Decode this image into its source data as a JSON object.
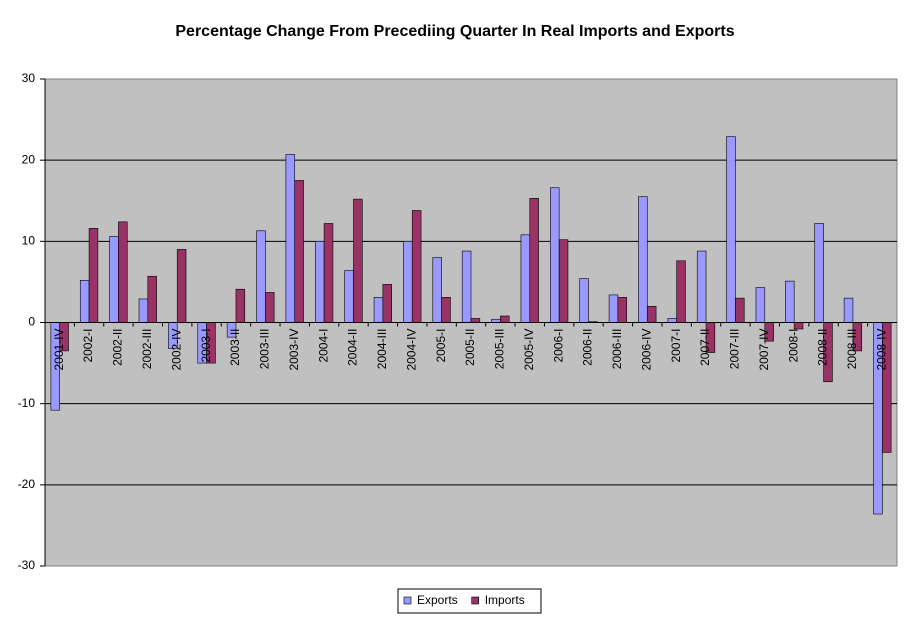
{
  "chart_data": {
    "type": "bar",
    "title": "Percentage Change From Precediing Quarter In Real Imports and Exports",
    "categories": [
      "2001-IV",
      "2002-I",
      "2002-II",
      "2002-III",
      "2002-IV",
      "2003-I",
      "2003-II",
      "2003-III",
      "2003-IV",
      "2004-I",
      "2004-II",
      "2004-III",
      "2004-IV",
      "2005-I",
      "2005-II",
      "2005-III",
      "2005-IV",
      "2006-I",
      "2006-II",
      "2006-III",
      "2006-IV",
      "2007-I",
      "2007-II",
      "2007-III",
      "2007-IV",
      "2008-I",
      "2008-II",
      "2008-III",
      "2008-IV"
    ],
    "series": [
      {
        "name": "Exports",
        "color": "#9999ff",
        "values": [
          -10.8,
          5.2,
          10.6,
          2.9,
          -3.2,
          -5.0,
          -1.8,
          11.3,
          20.7,
          10.0,
          6.4,
          3.1,
          10.0,
          8.0,
          8.8,
          0.4,
          10.8,
          16.6,
          5.4,
          3.4,
          15.5,
          0.5,
          8.8,
          22.9,
          4.3,
          5.1,
          12.2,
          3.0,
          -23.6
        ]
      },
      {
        "name": "Imports",
        "color": "#993366",
        "values": [
          -3.5,
          11.6,
          12.4,
          5.7,
          9.0,
          -5.0,
          4.1,
          3.7,
          17.5,
          12.2,
          15.2,
          4.7,
          13.8,
          3.1,
          0.5,
          0.8,
          15.3,
          10.2,
          0.1,
          3.1,
          2.0,
          7.6,
          -3.7,
          3.0,
          -2.3,
          -0.8,
          -7.3,
          -3.5,
          -16.0
        ]
      }
    ],
    "ylim": [
      -30,
      30
    ],
    "yticks": [
      -30,
      -20,
      -10,
      0,
      10,
      20,
      30
    ],
    "grid": true,
    "legend": "bottom"
  }
}
